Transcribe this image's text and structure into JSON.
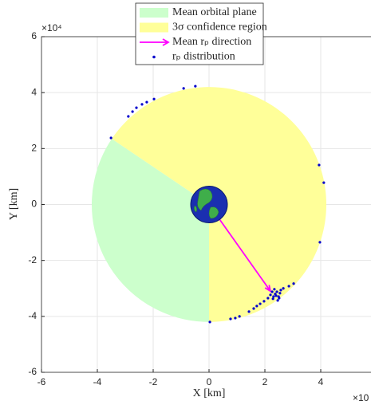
{
  "chart_data": {
    "type": "scatter",
    "xlabel": "X [km]",
    "ylabel": "Y [km]",
    "x_multiplier": "×10",
    "y_multiplier": "×10⁴",
    "xlim": [
      -6,
      6
    ],
    "ylim": [
      -6,
      6
    ],
    "xticks": [
      -6,
      -4,
      -2,
      0,
      2,
      4
    ],
    "yticks": [
      -6,
      -4,
      -2,
      0,
      2,
      4,
      6
    ],
    "grid": true,
    "legend": "top",
    "series": [
      {
        "name": "Mean orbital plane",
        "color": "#ccffcc",
        "type": "sector",
        "radius": 4.2,
        "theta": [
          146,
          270
        ]
      },
      {
        "name": "3σ confidence region",
        "color": "#ffff99",
        "type": "sector",
        "radius": 4.2,
        "theta": [
          -90,
          146
        ]
      },
      {
        "name": "Mean rₚ direction",
        "color": "#ff00ff",
        "type": "arrow",
        "x": [
          0,
          2.2
        ],
        "y": [
          0,
          -3.1
        ]
      },
      {
        "name": "rₚ distribution",
        "color": "#0000cc",
        "type": "points",
        "x": [
          -0.49,
          -0.91,
          -1.97,
          -2.23,
          -2.4,
          -2.6,
          -2.74,
          -2.89,
          -3.51,
          3.94,
          4.11,
          3.97,
          0.03,
          0.77,
          0.94,
          1.09,
          1.43,
          1.6,
          1.71,
          1.83,
          1.97,
          2.11,
          2.2,
          2.26,
          2.31,
          2.37,
          2.43,
          2.49,
          2.54,
          2.34,
          2.46,
          2.57,
          2.66,
          2.86,
          3.03,
          2.29,
          2.4,
          2.51
        ],
        "y": [
          4.23,
          4.15,
          3.77,
          3.66,
          3.58,
          3.46,
          3.32,
          3.15,
          2.38,
          1.41,
          0.78,
          -1.35,
          -4.2,
          -4.09,
          -4.06,
          -4.0,
          -3.83,
          -3.72,
          -3.63,
          -3.55,
          -3.46,
          -3.35,
          -3.23,
          -3.12,
          -3.29,
          -3.2,
          -3.12,
          -3.29,
          -3.17,
          -3.03,
          -3.43,
          -3.06,
          -3.0,
          -2.92,
          -2.83,
          -3.37,
          -3.26,
          -3.35
        ]
      }
    ]
  }
}
